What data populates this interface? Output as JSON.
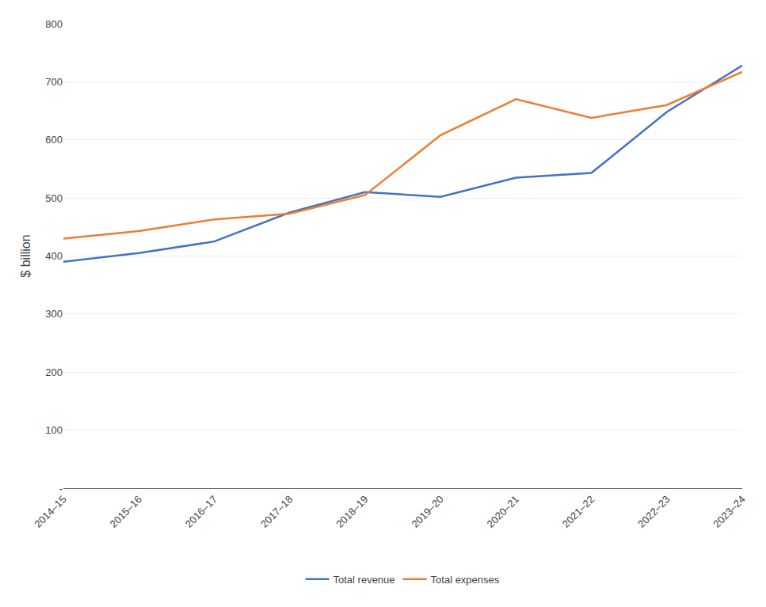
{
  "chart_data": {
    "type": "line",
    "ylabel": "$ billion",
    "categories": [
      "2014–15",
      "2015–16",
      "2016–17",
      "2017–18",
      "2018–19",
      "2019–20",
      "2020–21",
      "2021–22",
      "2022–23",
      "2023–24"
    ],
    "series": [
      {
        "name": "Total revenue",
        "color": "#4472C4",
        "values": [
          390,
          405,
          425,
          475,
          510,
          502,
          535,
          543,
          648,
          728
        ]
      },
      {
        "name": "Total expenses",
        "color": "#ED7D31",
        "values": [
          430,
          443,
          463,
          473,
          505,
          608,
          670,
          638,
          660,
          717
        ]
      }
    ],
    "ylim": [
      0,
      800
    ],
    "yticks": [
      {
        "value": 0,
        "label": "-"
      },
      100,
      200,
      300,
      400,
      500,
      600,
      700,
      800
    ],
    "grid": true,
    "legend": "bottom"
  }
}
